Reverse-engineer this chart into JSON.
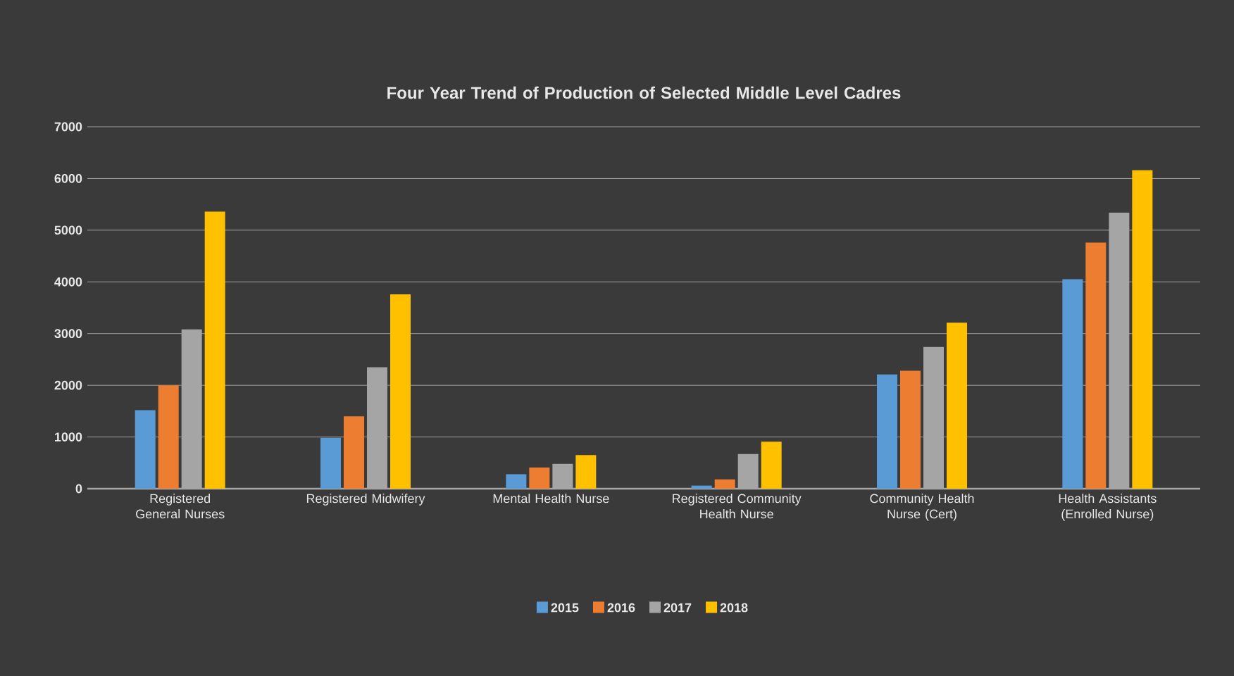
{
  "chart_data": {
    "type": "bar",
    "title": "Four Year Trend of Production of Selected Middle Level Cadres",
    "categories": [
      "Registered General Nurses",
      "Registered Midwifery",
      "Mental Health Nurse",
      "Registered Community Health Nurse",
      "Community Health Nurse (Cert)",
      "Health Assistants (Enrolled Nurse)"
    ],
    "series": [
      {
        "name": "2015",
        "color": "#5b9bd5",
        "values": [
          1520,
          985,
          280,
          60,
          2210,
          4050
        ]
      },
      {
        "name": "2016",
        "color": "#ed7d31",
        "values": [
          2000,
          1400,
          410,
          180,
          2280,
          4760
        ]
      },
      {
        "name": "2017",
        "color": "#a5a5a5",
        "values": [
          3080,
          2350,
          480,
          670,
          2740,
          5340
        ]
      },
      {
        "name": "2018",
        "color": "#ffc000",
        "values": [
          5360,
          3760,
          650,
          910,
          3210,
          6160
        ]
      }
    ],
    "ylim": [
      0,
      7000
    ],
    "yticks": [
      0,
      1000,
      2000,
      3000,
      4000,
      5000,
      6000,
      7000
    ],
    "grid": "y",
    "legend": "bottom"
  }
}
